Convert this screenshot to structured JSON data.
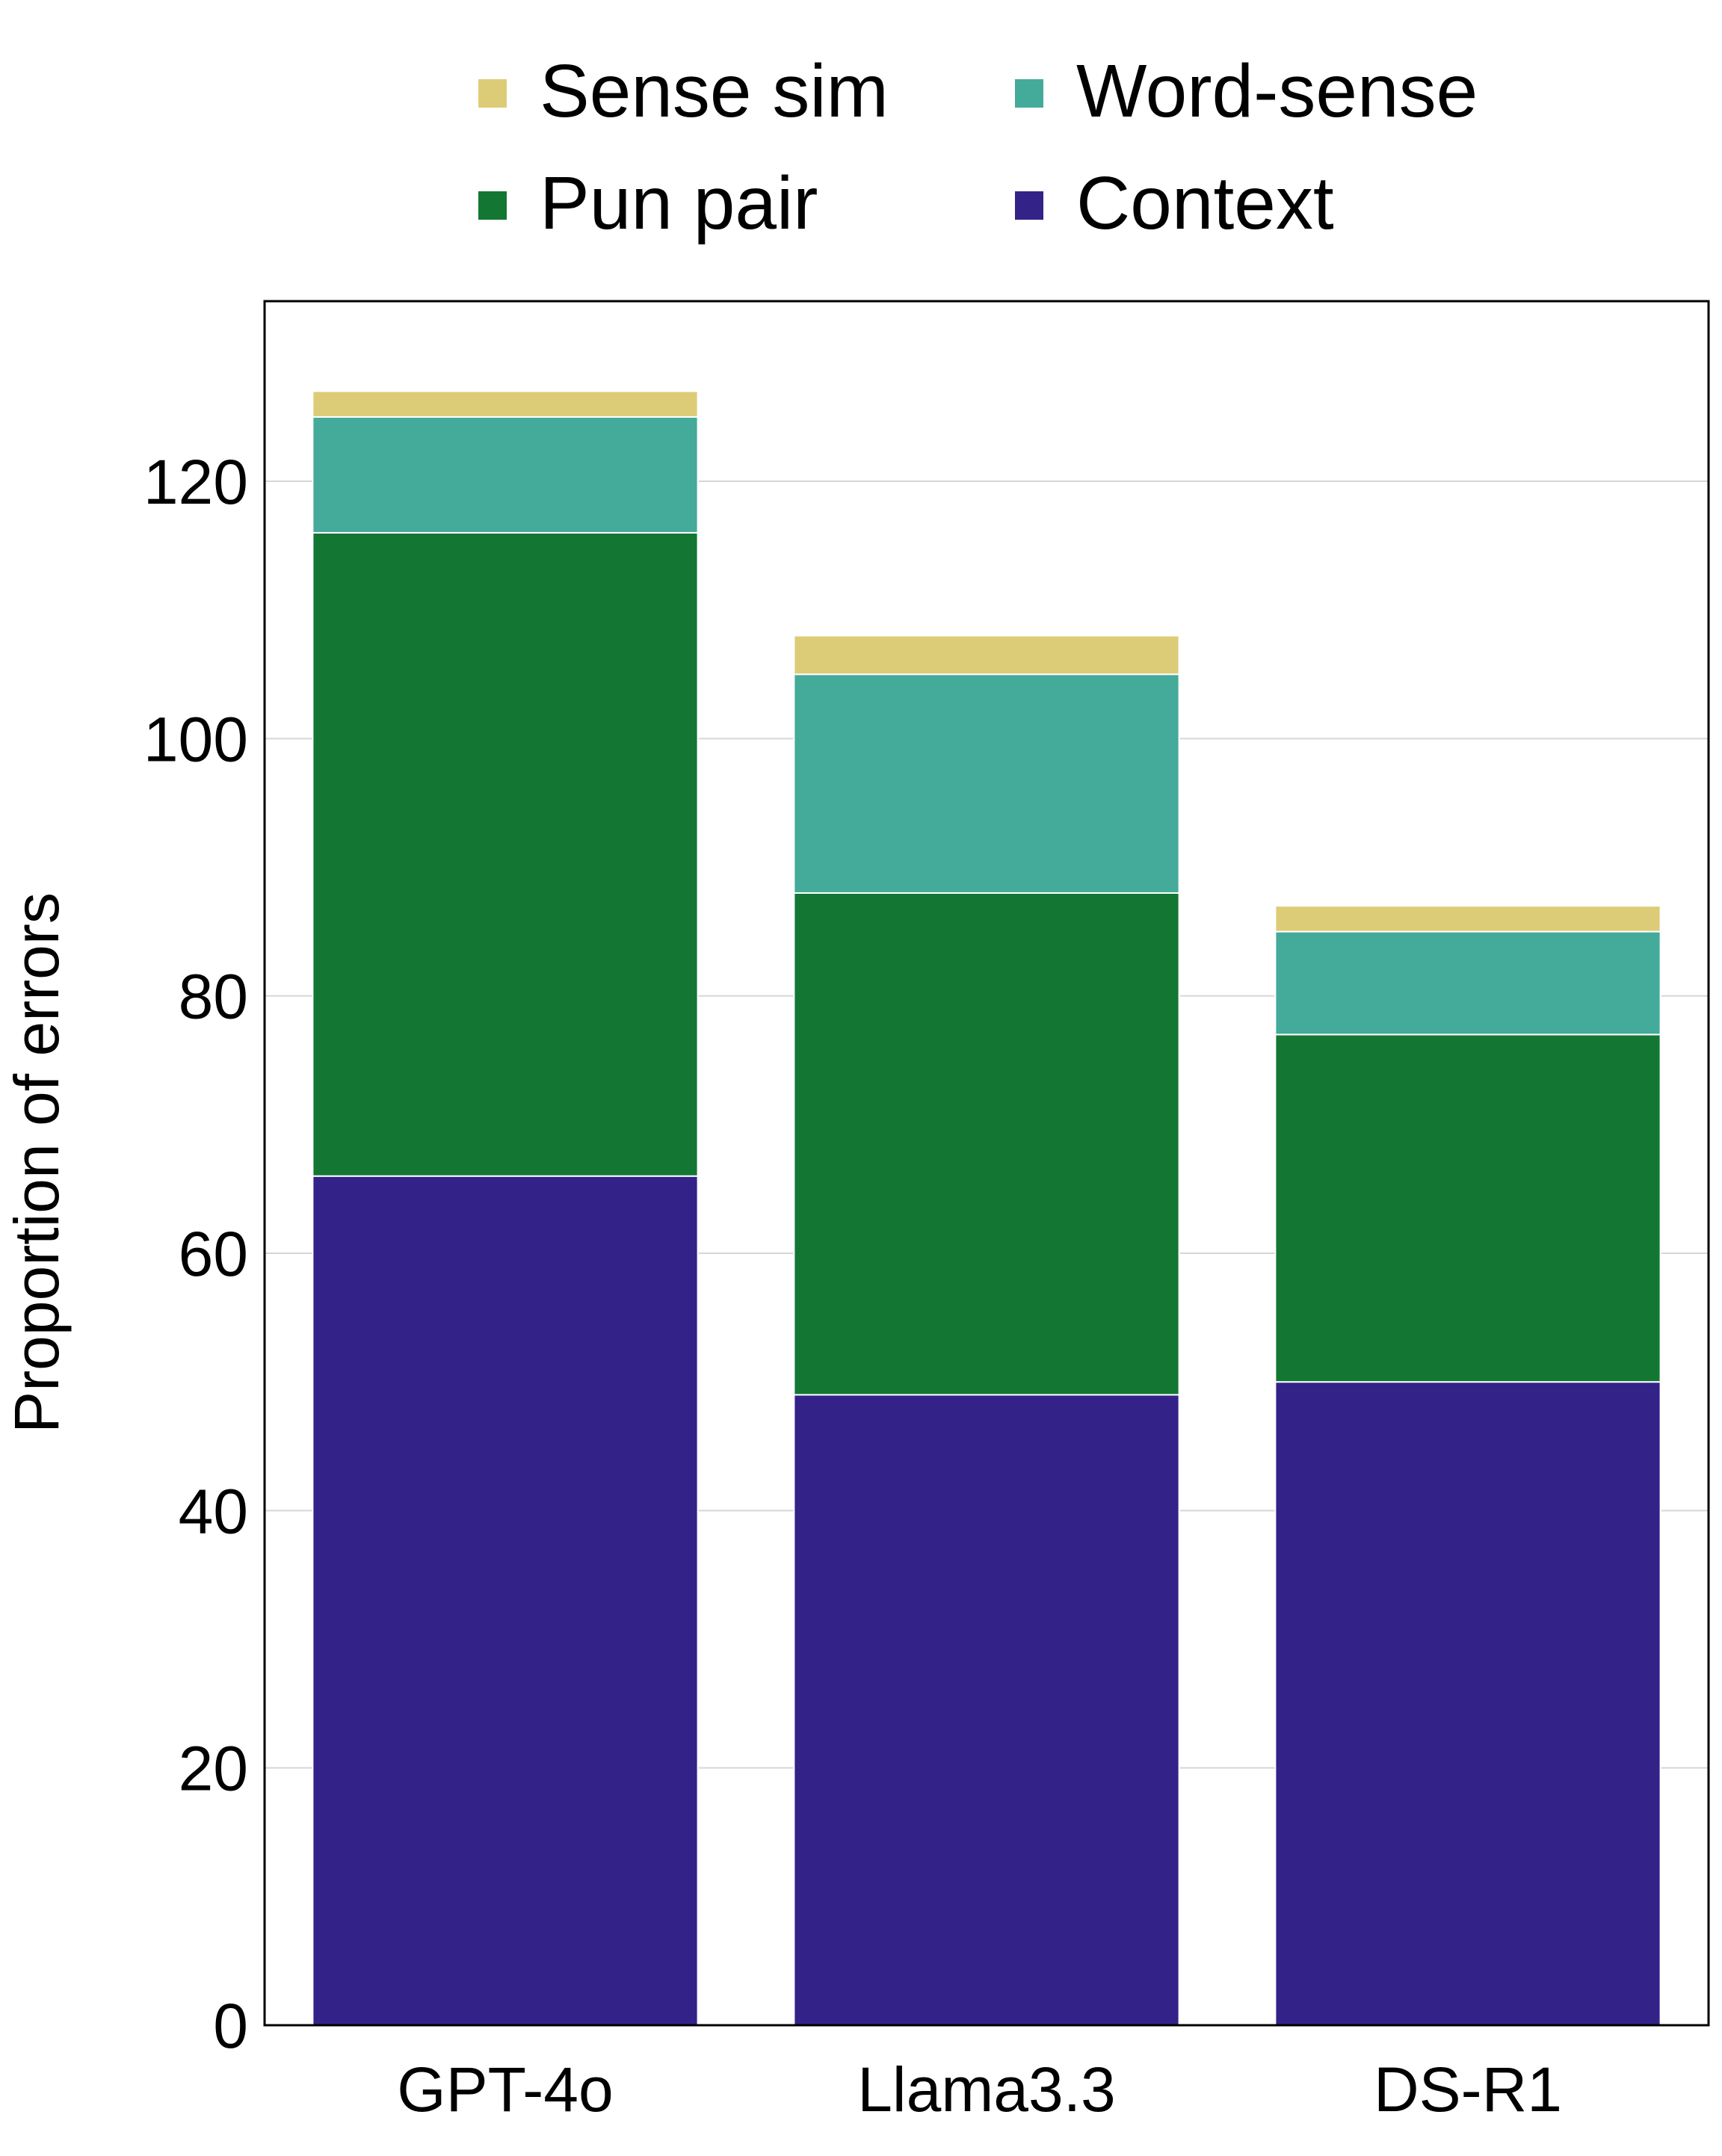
{
  "chart_data": {
    "type": "bar",
    "stacked": true,
    "categories": [
      "GPT-4o",
      "Llama3.3",
      "DS-R1"
    ],
    "series": [
      {
        "name": "Context",
        "color": "#332288",
        "values": [
          66,
          49,
          50
        ]
      },
      {
        "name": "Pun pair",
        "color": "#137733",
        "values": [
          50,
          39,
          27
        ]
      },
      {
        "name": "Word-sense",
        "color": "#44AA99",
        "values": [
          9,
          17,
          8
        ]
      },
      {
        "name": "Sense sim",
        "color": "#DDCC77",
        "values": [
          2,
          3,
          2
        ]
      }
    ],
    "legend_order": [
      "Sense sim",
      "Word-sense",
      "Pun pair",
      "Context"
    ],
    "legend_position": "top",
    "title": "",
    "xlabel": "",
    "ylabel": "Proportion of errors",
    "ylim": [
      0,
      134
    ],
    "yticks": [
      0,
      20,
      40,
      60,
      80,
      100,
      120
    ],
    "grid": "horizontal"
  }
}
